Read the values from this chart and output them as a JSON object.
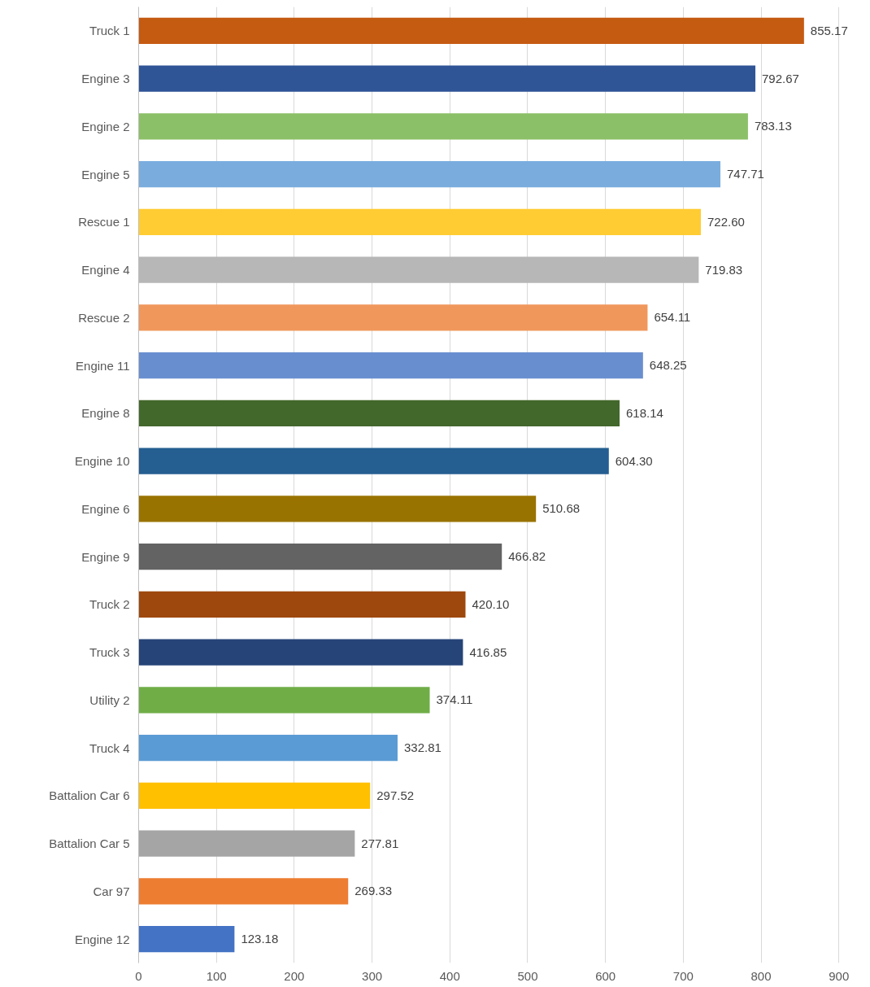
{
  "chart_data": {
    "type": "bar",
    "orientation": "horizontal",
    "categories": [
      "Truck 1",
      "Engine 3",
      "Engine 2",
      "Engine 5",
      "Rescue 1",
      "Engine 4",
      "Rescue 2",
      "Engine 11",
      "Engine 8",
      "Engine 10",
      "Engine 6",
      "Engine 9",
      "Truck 2",
      "Truck 3",
      "Utility 2",
      "Truck 4",
      "Battalion Car 6",
      "Battalion Car 5",
      "Car 97",
      "Engine 12"
    ],
    "values": [
      855.17,
      792.67,
      783.13,
      747.71,
      722.6,
      719.83,
      654.11,
      648.25,
      618.14,
      604.3,
      510.68,
      466.82,
      420.1,
      416.85,
      374.11,
      332.81,
      297.52,
      277.81,
      269.33,
      123.18
    ],
    "value_labels": [
      "855.17",
      "792.67",
      "783.13",
      "747.71",
      "722.60",
      "719.83",
      "654.11",
      "648.25",
      "618.14",
      "604.30",
      "510.68",
      "466.82",
      "420.10",
      "416.85",
      "374.11",
      "332.81",
      "297.52",
      "277.81",
      "269.33",
      "123.18"
    ],
    "colors": [
      "#c55a11",
      "#2f5597",
      "#8cc068",
      "#7aadde",
      "#ffcc33",
      "#b7b7b7",
      "#f0975c",
      "#698ed0",
      "#43682b",
      "#255e91",
      "#997300",
      "#636363",
      "#9e480e",
      "#264478",
      "#70ad47",
      "#5b9bd5",
      "#ffc000",
      "#a5a5a5",
      "#ed7d31",
      "#4472c4"
    ],
    "xlim": [
      0,
      900
    ],
    "xticks": [
      0,
      100,
      200,
      300,
      400,
      500,
      600,
      700,
      800,
      900
    ],
    "grid": "x"
  }
}
